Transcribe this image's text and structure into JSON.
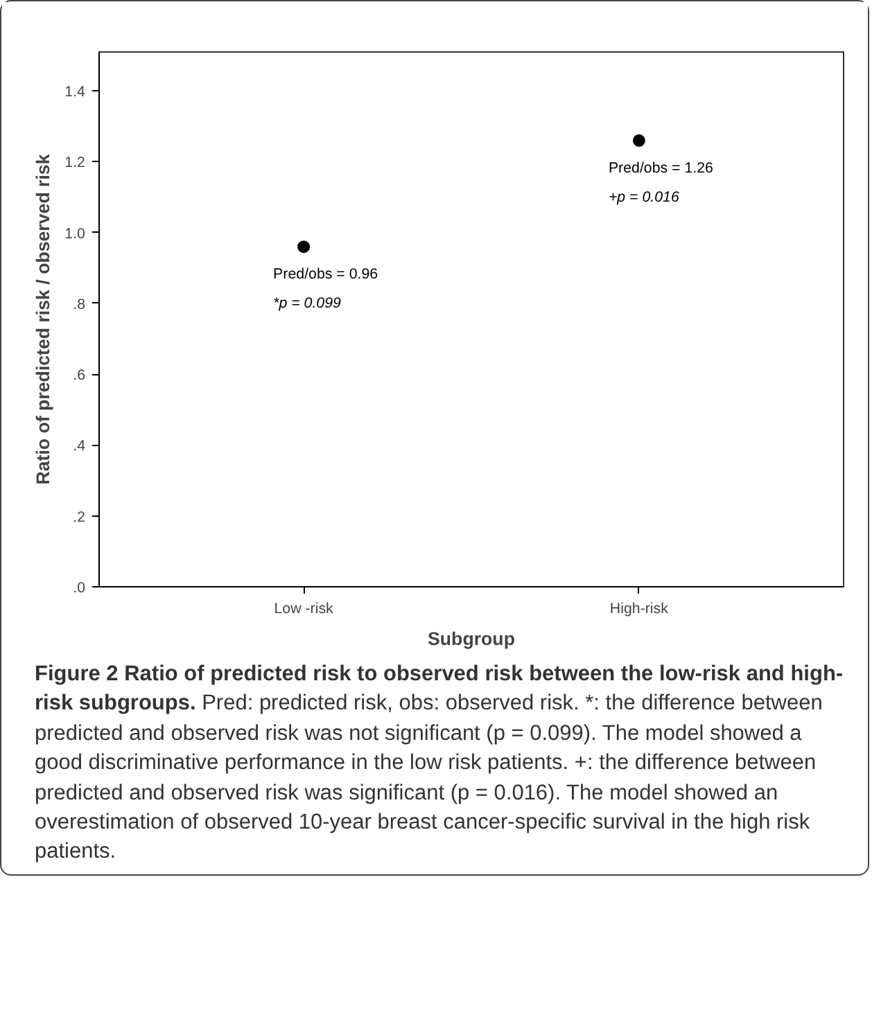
{
  "chart_data": {
    "type": "scatter",
    "title": "Figure 2 Ratio of predicted risk to observed risk between the low-risk and high-risk subgroups.",
    "subtitle": "Pred: predicted risk, obs: observed risk. *: the difference between predicted and observed risk was not significant (p = 0.099). The model showed a good discriminative performance in the low risk patients. +: the difference between predicted and observed risk was significant (p = 0.016). The model showed an overestimation of observed 10-year breast cancer-specific survival in the high risk patients.",
    "xlabel": "Subgroup",
    "ylabel": "Ratio of predicted risk / observed risk",
    "categories": [
      "Low -risk",
      "High-risk"
    ],
    "series": [
      {
        "color": "#000000",
        "values": [
          0.96,
          1.26
        ],
        "value_labels": [
          "Pred/obs = 0.96",
          "Pred/obs = 1.26"
        ]
      }
    ],
    "annotations": [
      "*p = 0.099",
      "+p = 0.016"
    ],
    "ylim": [
      0,
      1.51
    ],
    "yticks": [
      {
        "value": 0,
        "label": ".0"
      },
      {
        "value": 0.2,
        "label": ".2"
      },
      {
        "value": 0.4,
        "label": ".4"
      },
      {
        "value": 0.6,
        "label": ".6"
      },
      {
        "value": 0.8,
        "label": ".8"
      },
      {
        "value": 1.0,
        "label": "1.0"
      },
      {
        "value": 1.2,
        "label": "1.2"
      },
      {
        "value": 1.4,
        "label": "1.4"
      }
    ],
    "marker": "circle",
    "grid": false
  }
}
